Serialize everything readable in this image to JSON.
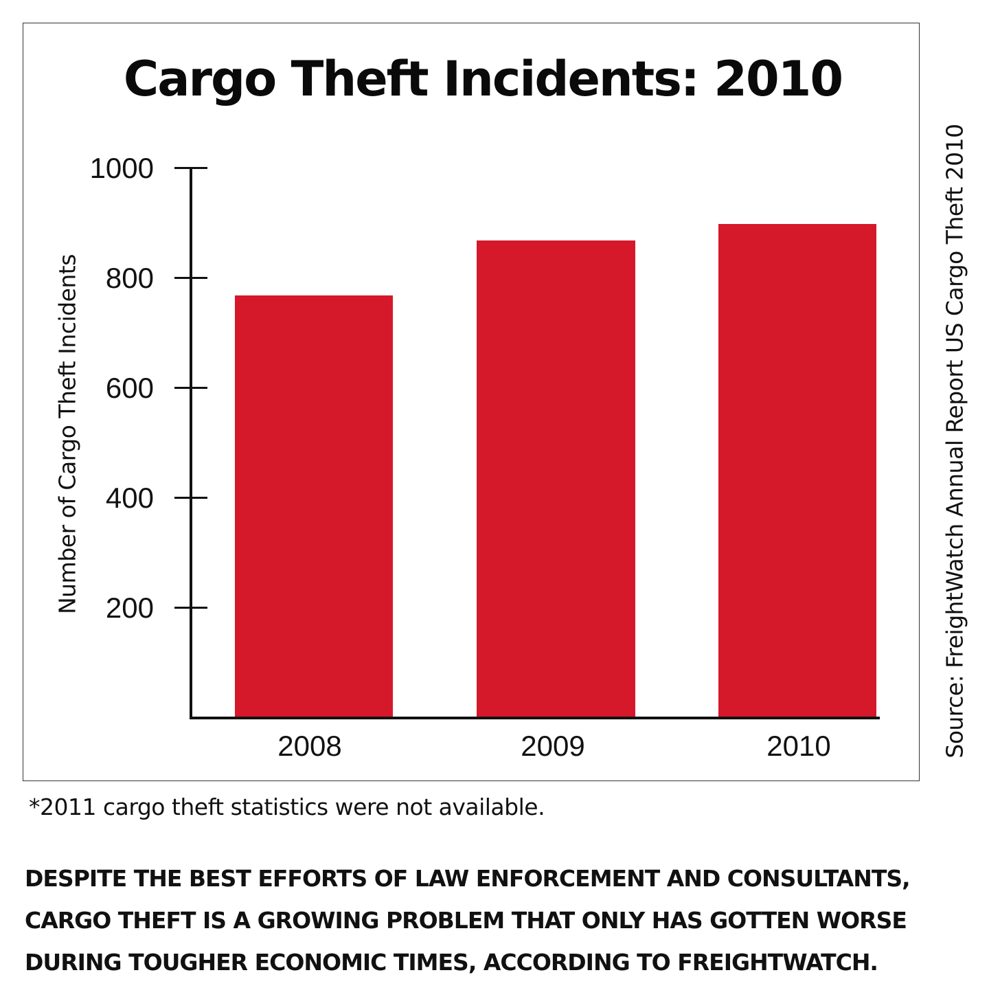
{
  "chart_data": {
    "type": "bar",
    "title": "Cargo Theft Incidents: 2010",
    "xlabel": "",
    "ylabel": "Number of Cargo Theft Incidents",
    "categories": [
      "2008",
      "2009",
      "2010"
    ],
    "values": [
      768,
      867,
      898
    ],
    "ylim": [
      0,
      1000
    ],
    "yticks": [
      200,
      400,
      600,
      800,
      1000
    ],
    "grid": false,
    "legend": null,
    "bar_color": "#d5182a",
    "source": "Source: FreightWatch Annual Report US Cargo Theft 2010",
    "footnote": "*2011 cargo theft statistics were not available."
  },
  "title": "Cargo Theft Incidents: 2010",
  "y_axis": {
    "title": "Number of Cargo Theft Incidents",
    "ticks": [
      "1000",
      "800",
      "600",
      "400",
      "200"
    ]
  },
  "x_axis": {
    "labels": [
      "2008",
      "2009",
      "2010"
    ]
  },
  "source": "Source: FreightWatch Annual Report US Cargo Theft 2010",
  "footnote": "*2011 cargo theft statistics were not available.",
  "caption": {
    "lines": [
      "DESPITE THE BEST EFFORTS OF LAW ENFORCEMENT AND CONSULTANTS,",
      "CARGO THEFT IS A GROWING PROBLEM THAT ONLY HAS GOTTEN WORSE",
      "DURING TOUGHER ECONOMIC TIMES, ACCORDING TO FREIGHTWATCH."
    ]
  },
  "colors": {
    "bar": "#d5182a",
    "axis": "#111111",
    "frame": "#333333"
  }
}
